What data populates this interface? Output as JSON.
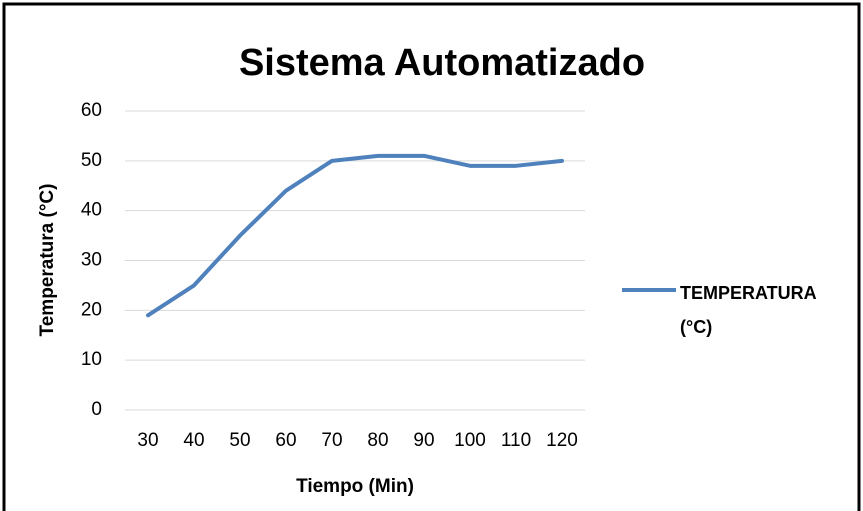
{
  "chart_data": {
    "type": "line",
    "title": "Sistema Automatizado",
    "x_label": "Tiempo (Min)",
    "y_label": "Temperatura (°C)",
    "categories": [
      "30",
      "40",
      "50",
      "60",
      "70",
      "80",
      "90",
      "100",
      "110",
      "120"
    ],
    "series": [
      {
        "name": "TEMPERATURA (°C)",
        "color": "#4f81bd",
        "values": [
          19,
          25,
          35,
          44,
          50,
          51,
          51,
          49,
          49,
          50
        ]
      }
    ],
    "ylim": [
      0,
      60
    ],
    "yticks": [
      0,
      10,
      20,
      30,
      40,
      50,
      60
    ],
    "grid": true,
    "legend": "right"
  }
}
